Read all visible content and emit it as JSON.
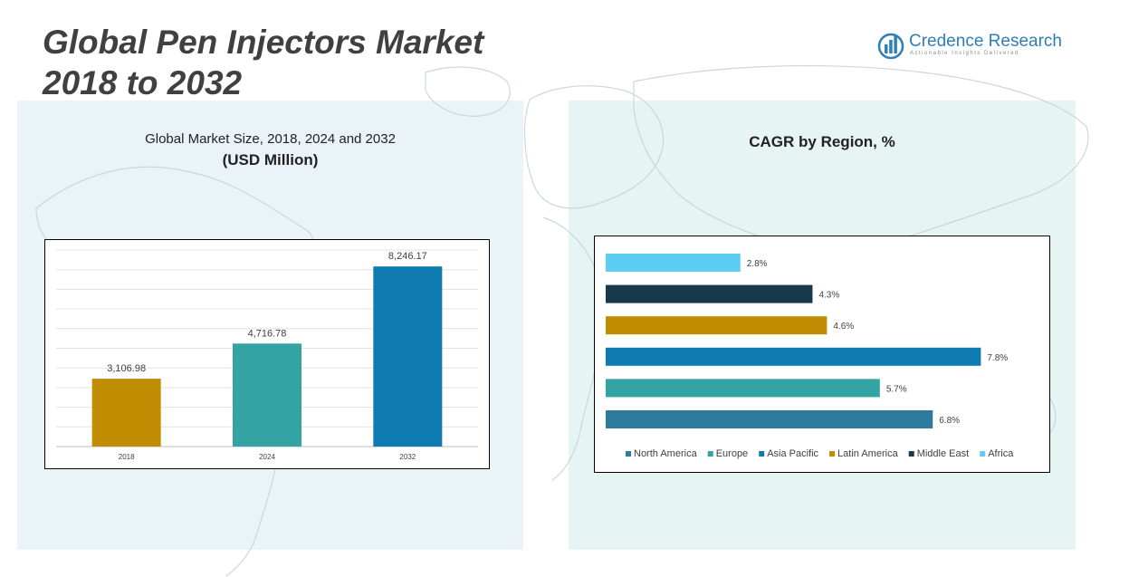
{
  "title": {
    "line1": "Global Pen Injectors Market",
    "line2": "2018 to 2032"
  },
  "brand": {
    "name": "Credence Research",
    "tagline": "Actionable Insights Delivered"
  },
  "colors": {
    "north_america": "#2c7b9c",
    "europe": "#33a3a3",
    "asia_pacific": "#0e7bb1",
    "latin_america": "#c18d03",
    "middle_east": "#17394b",
    "africa": "#5dcdf4",
    "market_2018": "#c18d03",
    "market_2024": "#33a3a3",
    "market_2032": "#0e7bb1",
    "logo": "#2e7fb8"
  },
  "left_panel": {
    "subtitle": "Global Market Size, 2018, 2024 and 2032",
    "unit": "(USD Million)"
  },
  "right_panel": {
    "title": "CAGR by Region, %"
  },
  "chart_data": [
    {
      "type": "bar",
      "title": "Global Market Size, 2018, 2024 and 2032",
      "subtitle": "(USD Million)",
      "categories": [
        "2018",
        "2024",
        "2032"
      ],
      "values": [
        3106.98,
        4716.78,
        8246.17
      ],
      "value_labels": [
        "3,106.98",
        "4,716.78",
        "8,246.17"
      ],
      "colors": [
        "#c18d03",
        "#33a3a3",
        "#0e7bb1"
      ],
      "ylim": [
        0,
        9000
      ],
      "grid": true,
      "legend": "none"
    },
    {
      "type": "bar",
      "orientation": "horizontal",
      "title": "CAGR by Region, %",
      "series": [
        {
          "name": "North America",
          "value": 6.8,
          "label": "6.8%",
          "color": "#2c7b9c"
        },
        {
          "name": "Europe",
          "value": 5.7,
          "label": "5.7%",
          "color": "#33a3a3"
        },
        {
          "name": "Asia Pacific",
          "value": 7.8,
          "label": "7.8%",
          "color": "#0e7bb1"
        },
        {
          "name": "Latin America",
          "value": 4.6,
          "label": "4.6%",
          "color": "#c18d03"
        },
        {
          "name": "Middle East",
          "value": 4.3,
          "label": "4.3%",
          "color": "#17394b"
        },
        {
          "name": "Africa",
          "value": 2.8,
          "label": "2.8%",
          "color": "#5dcdf4"
        }
      ],
      "xlim": [
        0,
        8
      ],
      "grid": false,
      "legend": "bottom"
    }
  ]
}
